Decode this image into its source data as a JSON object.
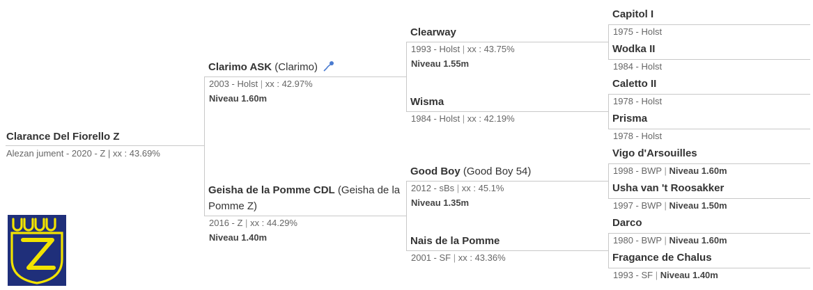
{
  "colors": {
    "logo_bg": "#1f2f7a",
    "logo_fg": "#f2e300",
    "lines": "#c8c8c8"
  },
  "logo": {
    "icon": "zangersheide-z-logo"
  },
  "subject": {
    "name": "Clarance Del Fiorello Z",
    "details": "Alezan jument - 2020 - Z | xx : 43.69%"
  },
  "sire": {
    "name": "Clarimo ASK",
    "alias": " (Clarimo)",
    "icon": "sperm-icon",
    "year_breed": "2003 - Holst",
    "xx": "xx : 42.97%",
    "level": "Niveau 1.60m"
  },
  "dam": {
    "name": "Geisha de la Pomme CDL",
    "alias": " (Geisha de la Pomme Z)",
    "year_breed": "2016 - Z",
    "xx": "xx : 44.29%",
    "level": "Niveau 1.40m"
  },
  "gen3": [
    {
      "name": "Clearway",
      "alias": "",
      "year_breed": "1993 - Holst",
      "xx": "xx : 43.75%",
      "level": "Niveau 1.55m"
    },
    {
      "name": "Wisma",
      "alias": "",
      "year_breed": "1984 - Holst",
      "xx": "xx : 42.19%",
      "level": ""
    },
    {
      "name": "Good Boy",
      "alias": " (Good Boy 54)",
      "year_breed": "2012 - sBs",
      "xx": "xx : 45.1%",
      "level": "Niveau 1.35m"
    },
    {
      "name": "Nais de la Pomme",
      "alias": "",
      "year_breed": "2001 - SF",
      "xx": "xx : 43.36%",
      "level": ""
    }
  ],
  "gen4": [
    {
      "name": "Capitol I",
      "year_breed": "1975 - Holst",
      "level": ""
    },
    {
      "name": "Wodka II",
      "year_breed": "1984 - Holst",
      "level": ""
    },
    {
      "name": "Caletto II",
      "year_breed": "1978 - Holst",
      "level": ""
    },
    {
      "name": "Prisma",
      "year_breed": "1978 - Holst",
      "level": ""
    },
    {
      "name": "Vigo d'Arsouilles",
      "year_breed": "1998 - BWP",
      "level": "Niveau 1.60m"
    },
    {
      "name": "Usha van 't Roosakker",
      "year_breed": "1997 - BWP",
      "level": "Niveau 1.50m"
    },
    {
      "name": "Darco",
      "year_breed": "1980 - BWP",
      "level": "Niveau 1.60m"
    },
    {
      "name": "Fragance de Chalus",
      "year_breed": "1993 - SF",
      "level": "Niveau 1.40m"
    }
  ]
}
